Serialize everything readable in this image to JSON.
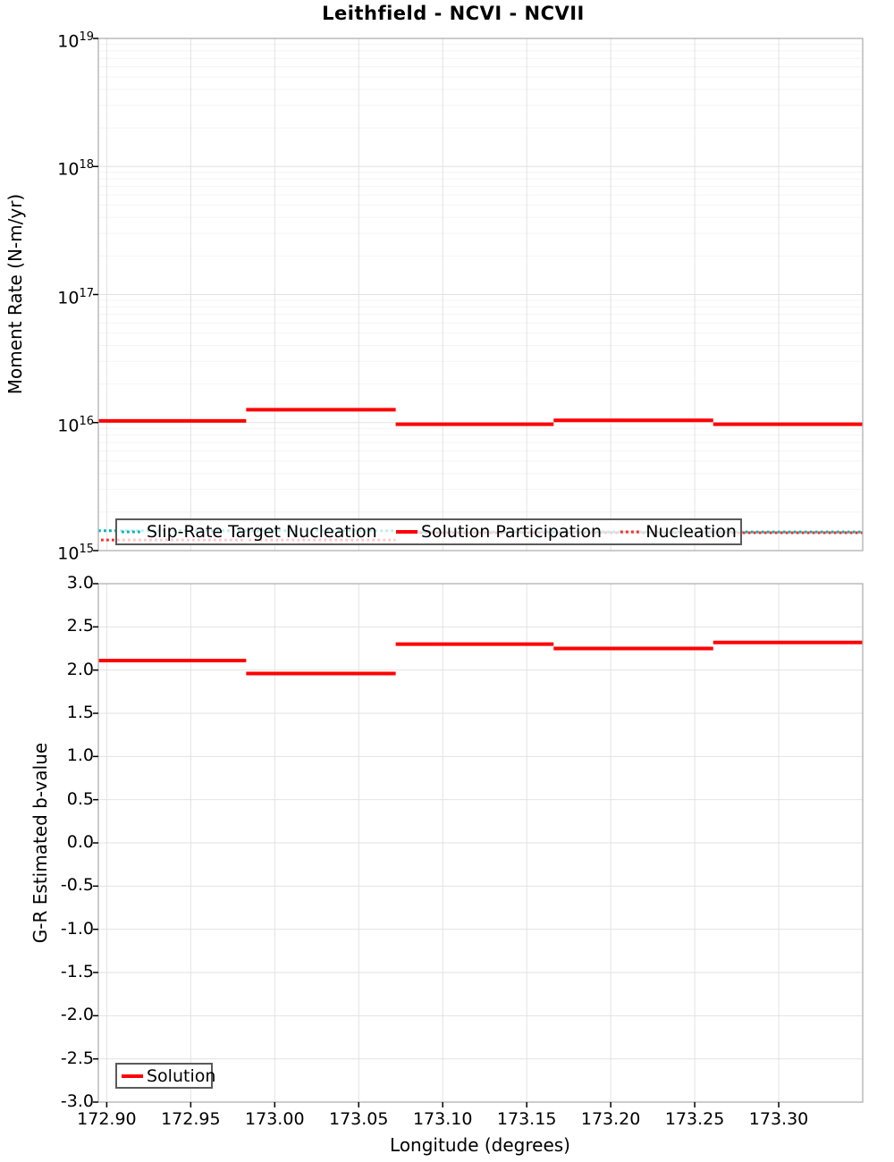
{
  "colors": {
    "grid_major": "#e2e2e2",
    "grid_minor": "#f4f4f4",
    "plot_border": "#b0b0b0",
    "tick": "#000000",
    "legend_border": "#5a5a5a",
    "solution_red": "#ff0000",
    "slip_rate_teal": "#00b4b4",
    "nucleation_red": "#ff2a2a"
  },
  "chart_data": [
    {
      "type": "line",
      "title": "Leithfield - NCVI - NCVII",
      "ylabel": "Moment Rate (N-m/yr)",
      "xlabel": "",
      "yscale": "log",
      "ylim": [
        1000000000000000.0,
        1e+19
      ],
      "ytick_exponents": [
        19,
        18,
        17,
        16,
        15
      ],
      "xlim": [
        172.895,
        173.35
      ],
      "xticks": [
        172.9,
        172.95,
        173.0,
        173.05,
        173.1,
        173.15,
        173.2,
        173.25,
        173.3
      ],
      "xtick_labels": [
        "172.90",
        "172.95",
        "173.00",
        "173.05",
        "173.10",
        "173.15",
        "173.20",
        "173.25",
        "173.30"
      ],
      "x_section_edges": [
        172.895,
        172.983,
        173.072,
        173.166,
        173.261,
        173.35
      ],
      "grid": true,
      "legend_position": "inside-bottom",
      "series": [
        {
          "name": "Slip-Rate Target Nucleation",
          "color": "#00b4b4",
          "line_style": "dotted",
          "line_width": 3,
          "values": [
            1430000000000000.0,
            1430000000000000.0,
            1400000000000000.0,
            1400000000000000.0,
            1400000000000000.0
          ]
        },
        {
          "name": "Solution Participation",
          "color": "#ff0000",
          "line_style": "solid",
          "line_width": 4,
          "values": [
            1.03e+16,
            1.26e+16,
            9700000000000000.0,
            1.04e+16,
            9700000000000000.0
          ]
        },
        {
          "name": "Nucleation",
          "color": "#ff2a2a",
          "line_style": "dotted",
          "line_width": 3,
          "values": [
            1210000000000000.0,
            1210000000000000.0,
            1380000000000000.0,
            1380000000000000.0,
            1380000000000000.0
          ]
        }
      ]
    },
    {
      "type": "line",
      "title": "",
      "ylabel": "G-R Estimated b-value",
      "xlabel": "Longitude (degrees)",
      "yscale": "linear",
      "ylim": [
        -3.0,
        3.0
      ],
      "yticks": [
        3.0,
        2.5,
        2.0,
        1.5,
        1.0,
        0.5,
        0.0,
        -0.5,
        -1.0,
        -1.5,
        -2.0,
        -2.5,
        -3.0
      ],
      "ytick_labels": [
        "3.0",
        "2.5",
        "2.0",
        "1.5",
        "1.0",
        "0.5",
        "0.0",
        "-0.5",
        "-1.0",
        "-1.5",
        "-2.0",
        "-2.5",
        "-3.0"
      ],
      "xlim": [
        172.895,
        173.35
      ],
      "xticks": [
        172.9,
        172.95,
        173.0,
        173.05,
        173.1,
        173.15,
        173.2,
        173.25,
        173.3
      ],
      "xtick_labels": [
        "172.90",
        "172.95",
        "173.00",
        "173.05",
        "173.10",
        "173.15",
        "173.20",
        "173.25",
        "173.30"
      ],
      "x_section_edges": [
        172.895,
        172.983,
        173.072,
        173.166,
        173.261,
        173.35
      ],
      "grid": true,
      "legend_position": "inside-bottom-left",
      "series": [
        {
          "name": "Solution",
          "color": "#ff0000",
          "line_style": "solid",
          "line_width": 4,
          "values": [
            2.11,
            1.96,
            2.3,
            2.25,
            2.32
          ]
        }
      ]
    }
  ]
}
